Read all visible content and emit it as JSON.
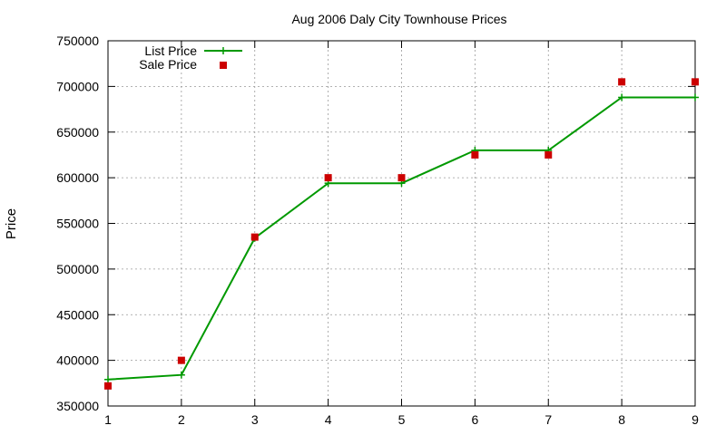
{
  "chart_data": {
    "type": "line",
    "title": "Aug 2006 Daly City Townhouse Prices",
    "xlabel": "",
    "ylabel": "Price",
    "xlim": [
      1,
      9
    ],
    "ylim": [
      350000,
      750000
    ],
    "x_ticks": [
      "1",
      "2",
      "3",
      "4",
      "5",
      "6",
      "7",
      "8",
      "9"
    ],
    "y_ticks": [
      "350000",
      "400000",
      "450000",
      "500000",
      "550000",
      "600000",
      "650000",
      "700000",
      "750000"
    ],
    "grid": true,
    "legend_position": "top-left",
    "x": [
      1,
      2,
      3,
      4,
      5,
      6,
      7,
      8,
      9
    ],
    "series": [
      {
        "name": "List Price",
        "style": "line with plus markers",
        "color": "#009900",
        "values": [
          379000,
          384000,
          534000,
          594000,
          594000,
          630000,
          630000,
          688000,
          688000
        ]
      },
      {
        "name": "Sale Price",
        "style": "square markers",
        "color": "#cc0000",
        "values": [
          372000,
          400000,
          535000,
          600000,
          600000,
          625000,
          625000,
          705000,
          705000
        ]
      }
    ]
  }
}
